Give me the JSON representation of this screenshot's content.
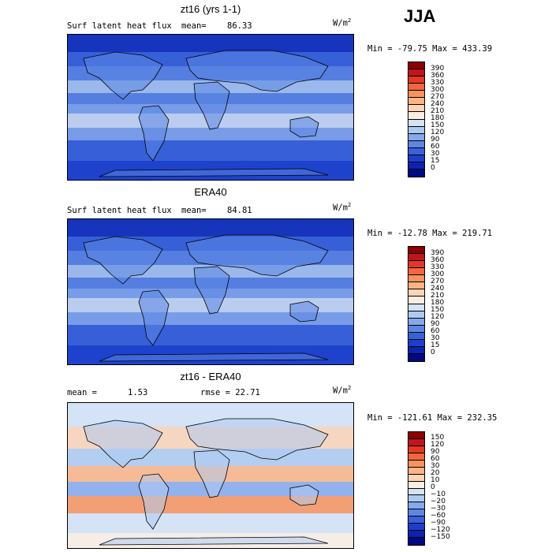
{
  "season": "JJA",
  "panels": [
    {
      "title": "zt16 (yrs 1-1)",
      "variable": "Surf latent heat flux",
      "stat_label": "mean=",
      "stat_value": "86.33",
      "units_base": "W/m",
      "units_exp": "2",
      "range_text": "Min = -79.75 Max = 433.39",
      "colorbar_levels": [
        "390",
        "360",
        "330",
        "300",
        "270",
        "240",
        "210",
        "180",
        "150",
        "120",
        "90",
        "60",
        "30",
        "15",
        "0"
      ],
      "colorbar_colors": [
        "#8b0000",
        "#c0161b",
        "#e03a24",
        "#f2673d",
        "#f7935e",
        "#fab486",
        "#fcd4b6",
        "#faeee3",
        "#d4e3f5",
        "#aecaf0",
        "#86a9ec",
        "#5d86e3",
        "#3a61d9",
        "#1c3fcb",
        "#0a23b0",
        "#000a80"
      ],
      "palette": "warm-positive"
    },
    {
      "title": "ERA40",
      "variable": "Surf latent heat flux",
      "stat_label": "mean=",
      "stat_value": "84.81",
      "units_base": "W/m",
      "units_exp": "2",
      "range_text": "Min = -12.78 Max = 219.71",
      "colorbar_levels": [
        "390",
        "360",
        "330",
        "300",
        "270",
        "240",
        "210",
        "180",
        "150",
        "120",
        "90",
        "60",
        "30",
        "15",
        "0"
      ],
      "colorbar_colors": [
        "#8b0000",
        "#c0161b",
        "#e03a24",
        "#f2673d",
        "#f7935e",
        "#fab486",
        "#fcd4b6",
        "#faeee3",
        "#d4e3f5",
        "#aecaf0",
        "#86a9ec",
        "#5d86e3",
        "#3a61d9",
        "#1c3fcb",
        "#0a23b0",
        "#000a80"
      ],
      "palette": "warm-positive"
    },
    {
      "title": "zt16 - ERA40",
      "variable": "mean =",
      "stat_label": "1.53",
      "stat_value": "rmse =   22.71",
      "units_base": "W/m",
      "units_exp": "2",
      "range_text": "Min = -121.61 Max = 232.35",
      "colorbar_levels": [
        "150",
        "120",
        "90",
        "60",
        "30",
        "20",
        "10",
        "0",
        "−10",
        "−20",
        "−30",
        "−60",
        "−90",
        "−120",
        "−150"
      ],
      "colorbar_colors": [
        "#8b0000",
        "#c0161b",
        "#e03a24",
        "#f2673d",
        "#f7935e",
        "#fab486",
        "#fcd4b6",
        "#faeee3",
        "#d4e3f5",
        "#aecaf0",
        "#86a9ec",
        "#5d86e3",
        "#3a61d9",
        "#1c3fcb",
        "#0a23b0",
        "#000a80"
      ],
      "palette": "diverging"
    }
  ]
}
